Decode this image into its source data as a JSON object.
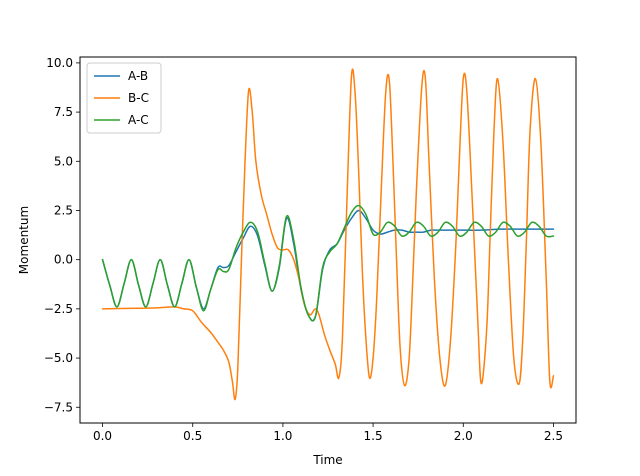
{
  "chart_data": {
    "type": "line",
    "title": "",
    "xlabel": "Time",
    "ylabel": "Momentum",
    "xlim": [
      -0.125,
      2.625
    ],
    "ylim": [
      -8.3,
      10.3
    ],
    "xticks": [
      0.0,
      0.5,
      1.0,
      1.5,
      2.0,
      2.5
    ],
    "xtick_labels": [
      "0.0",
      "0.5",
      "1.0",
      "1.5",
      "2.0",
      "2.5"
    ],
    "yticks": [
      -7.5,
      -5.0,
      -2.5,
      0.0,
      2.5,
      5.0,
      7.5,
      10.0
    ],
    "ytick_labels": [
      "−7.5",
      "−5.0",
      "−2.5",
      "0.0",
      "2.5",
      "5.0",
      "7.5",
      "10.0"
    ],
    "grid": false,
    "legend_position": "top-left",
    "series": [
      {
        "name": "A-B",
        "color": "#1f77b4",
        "x": [
          0.0,
          0.04,
          0.08,
          0.12,
          0.16,
          0.2,
          0.24,
          0.28,
          0.32,
          0.36,
          0.4,
          0.44,
          0.48,
          0.52,
          0.56,
          0.6,
          0.64,
          0.67,
          0.7,
          0.74,
          0.78,
          0.82,
          0.86,
          0.9,
          0.94,
          0.98,
          1.02,
          1.06,
          1.1,
          1.14,
          1.18,
          1.22,
          1.26,
          1.3,
          1.34,
          1.38,
          1.42,
          1.46,
          1.5,
          1.54,
          1.58,
          1.62,
          1.66,
          1.7,
          1.74,
          1.78,
          1.82,
          1.86,
          1.9,
          1.94,
          1.98,
          2.02,
          2.1,
          2.2,
          2.3,
          2.4,
          2.5
        ],
        "y": [
          0.0,
          -1.3,
          -2.4,
          -1.2,
          0.0,
          -1.3,
          -2.4,
          -1.2,
          0.0,
          -1.3,
          -2.4,
          -1.2,
          0.0,
          -1.4,
          -2.5,
          -1.5,
          -0.4,
          -0.4,
          -0.3,
          0.4,
          1.1,
          1.7,
          1.2,
          -0.3,
          -1.6,
          -0.4,
          2.1,
          0.8,
          -1.5,
          -2.8,
          -2.9,
          -0.5,
          0.5,
          0.8,
          1.5,
          2.1,
          2.5,
          2.1,
          1.5,
          1.3,
          1.4,
          1.5,
          1.5,
          1.4,
          1.4,
          1.4,
          1.5,
          1.5,
          1.5,
          1.5,
          1.5,
          1.5,
          1.5,
          1.55,
          1.55,
          1.55,
          1.55
        ]
      },
      {
        "name": "B-C",
        "color": "#ff7f0e",
        "x": [
          0.0,
          0.1,
          0.2,
          0.3,
          0.4,
          0.45,
          0.5,
          0.55,
          0.6,
          0.64,
          0.67,
          0.7,
          0.72,
          0.735,
          0.75,
          0.77,
          0.79,
          0.81,
          0.83,
          0.85,
          0.88,
          0.91,
          0.94,
          0.97,
          1.0,
          1.03,
          1.06,
          1.09,
          1.12,
          1.15,
          1.18,
          1.2,
          1.23,
          1.26,
          1.29,
          1.31,
          1.33,
          1.355,
          1.38,
          1.4,
          1.42,
          1.44,
          1.46,
          1.48,
          1.5,
          1.52,
          1.545,
          1.57,
          1.59,
          1.61,
          1.63,
          1.65,
          1.675,
          1.7,
          1.72,
          1.74,
          1.77,
          1.79,
          1.81,
          1.84,
          1.87,
          1.9,
          1.93,
          1.96,
          1.98,
          2.0,
          2.02,
          2.05,
          2.08,
          2.1,
          2.13,
          2.15,
          2.17,
          2.19,
          2.22,
          2.25,
          2.28,
          2.31,
          2.33,
          2.35,
          2.37,
          2.4,
          2.43,
          2.46,
          2.48,
          2.5
        ],
        "y": [
          -2.5,
          -2.48,
          -2.47,
          -2.45,
          -2.4,
          -2.5,
          -2.6,
          -3.2,
          -3.7,
          -4.2,
          -4.6,
          -5.2,
          -6.2,
          -7.1,
          -5.5,
          0.0,
          5.0,
          8.6,
          7.5,
          5.0,
          3.3,
          2.3,
          1.3,
          0.6,
          0.5,
          0.5,
          0.0,
          -1.0,
          -2.3,
          -2.8,
          -2.5,
          -2.8,
          -3.8,
          -4.6,
          -5.3,
          -6.0,
          -4.0,
          3.0,
          9.3,
          8.5,
          4.5,
          -0.5,
          -4.0,
          -6.0,
          -5.0,
          -2.0,
          3.5,
          8.5,
          9.1,
          5.0,
          0.0,
          -4.5,
          -6.4,
          -5.0,
          -1.0,
          3.5,
          8.8,
          9.2,
          5.0,
          -1.0,
          -5.0,
          -6.4,
          -4.0,
          1.0,
          5.5,
          9.2,
          8.5,
          3.0,
          -3.0,
          -6.3,
          -3.5,
          1.5,
          6.5,
          9.2,
          6.0,
          0.0,
          -5.0,
          -6.3,
          -4.0,
          1.0,
          6.5,
          9.2,
          6.0,
          -1.0,
          -6.2,
          -5.9
        ]
      },
      {
        "name": "A-C",
        "color": "#2ca02c",
        "x": [
          0.0,
          0.04,
          0.08,
          0.12,
          0.16,
          0.2,
          0.24,
          0.28,
          0.32,
          0.36,
          0.4,
          0.44,
          0.48,
          0.52,
          0.56,
          0.6,
          0.64,
          0.67,
          0.7,
          0.74,
          0.78,
          0.82,
          0.86,
          0.9,
          0.94,
          0.98,
          1.02,
          1.06,
          1.1,
          1.14,
          1.18,
          1.22,
          1.26,
          1.3,
          1.34,
          1.38,
          1.42,
          1.46,
          1.5,
          1.54,
          1.58,
          1.62,
          1.66,
          1.7,
          1.74,
          1.78,
          1.82,
          1.86,
          1.9,
          1.94,
          1.98,
          2.02,
          2.06,
          2.1,
          2.14,
          2.18,
          2.22,
          2.26,
          2.3,
          2.34,
          2.38,
          2.42,
          2.46,
          2.5
        ],
        "y": [
          0.0,
          -1.3,
          -2.4,
          -1.2,
          0.0,
          -1.3,
          -2.4,
          -1.2,
          0.0,
          -1.3,
          -2.4,
          -1.2,
          0.0,
          -1.4,
          -2.6,
          -1.5,
          -0.5,
          -0.6,
          -0.5,
          0.6,
          1.4,
          1.9,
          1.4,
          -0.2,
          -1.6,
          -0.3,
          2.2,
          1.0,
          -1.4,
          -2.8,
          -2.9,
          -0.4,
          0.4,
          0.8,
          1.6,
          2.4,
          2.75,
          2.3,
          1.3,
          1.4,
          1.9,
          1.7,
          1.2,
          1.4,
          1.9,
          1.7,
          1.2,
          1.4,
          1.9,
          1.7,
          1.2,
          1.4,
          1.9,
          1.7,
          1.2,
          1.4,
          1.9,
          1.7,
          1.2,
          1.4,
          1.9,
          1.7,
          1.2,
          1.2
        ]
      }
    ]
  }
}
